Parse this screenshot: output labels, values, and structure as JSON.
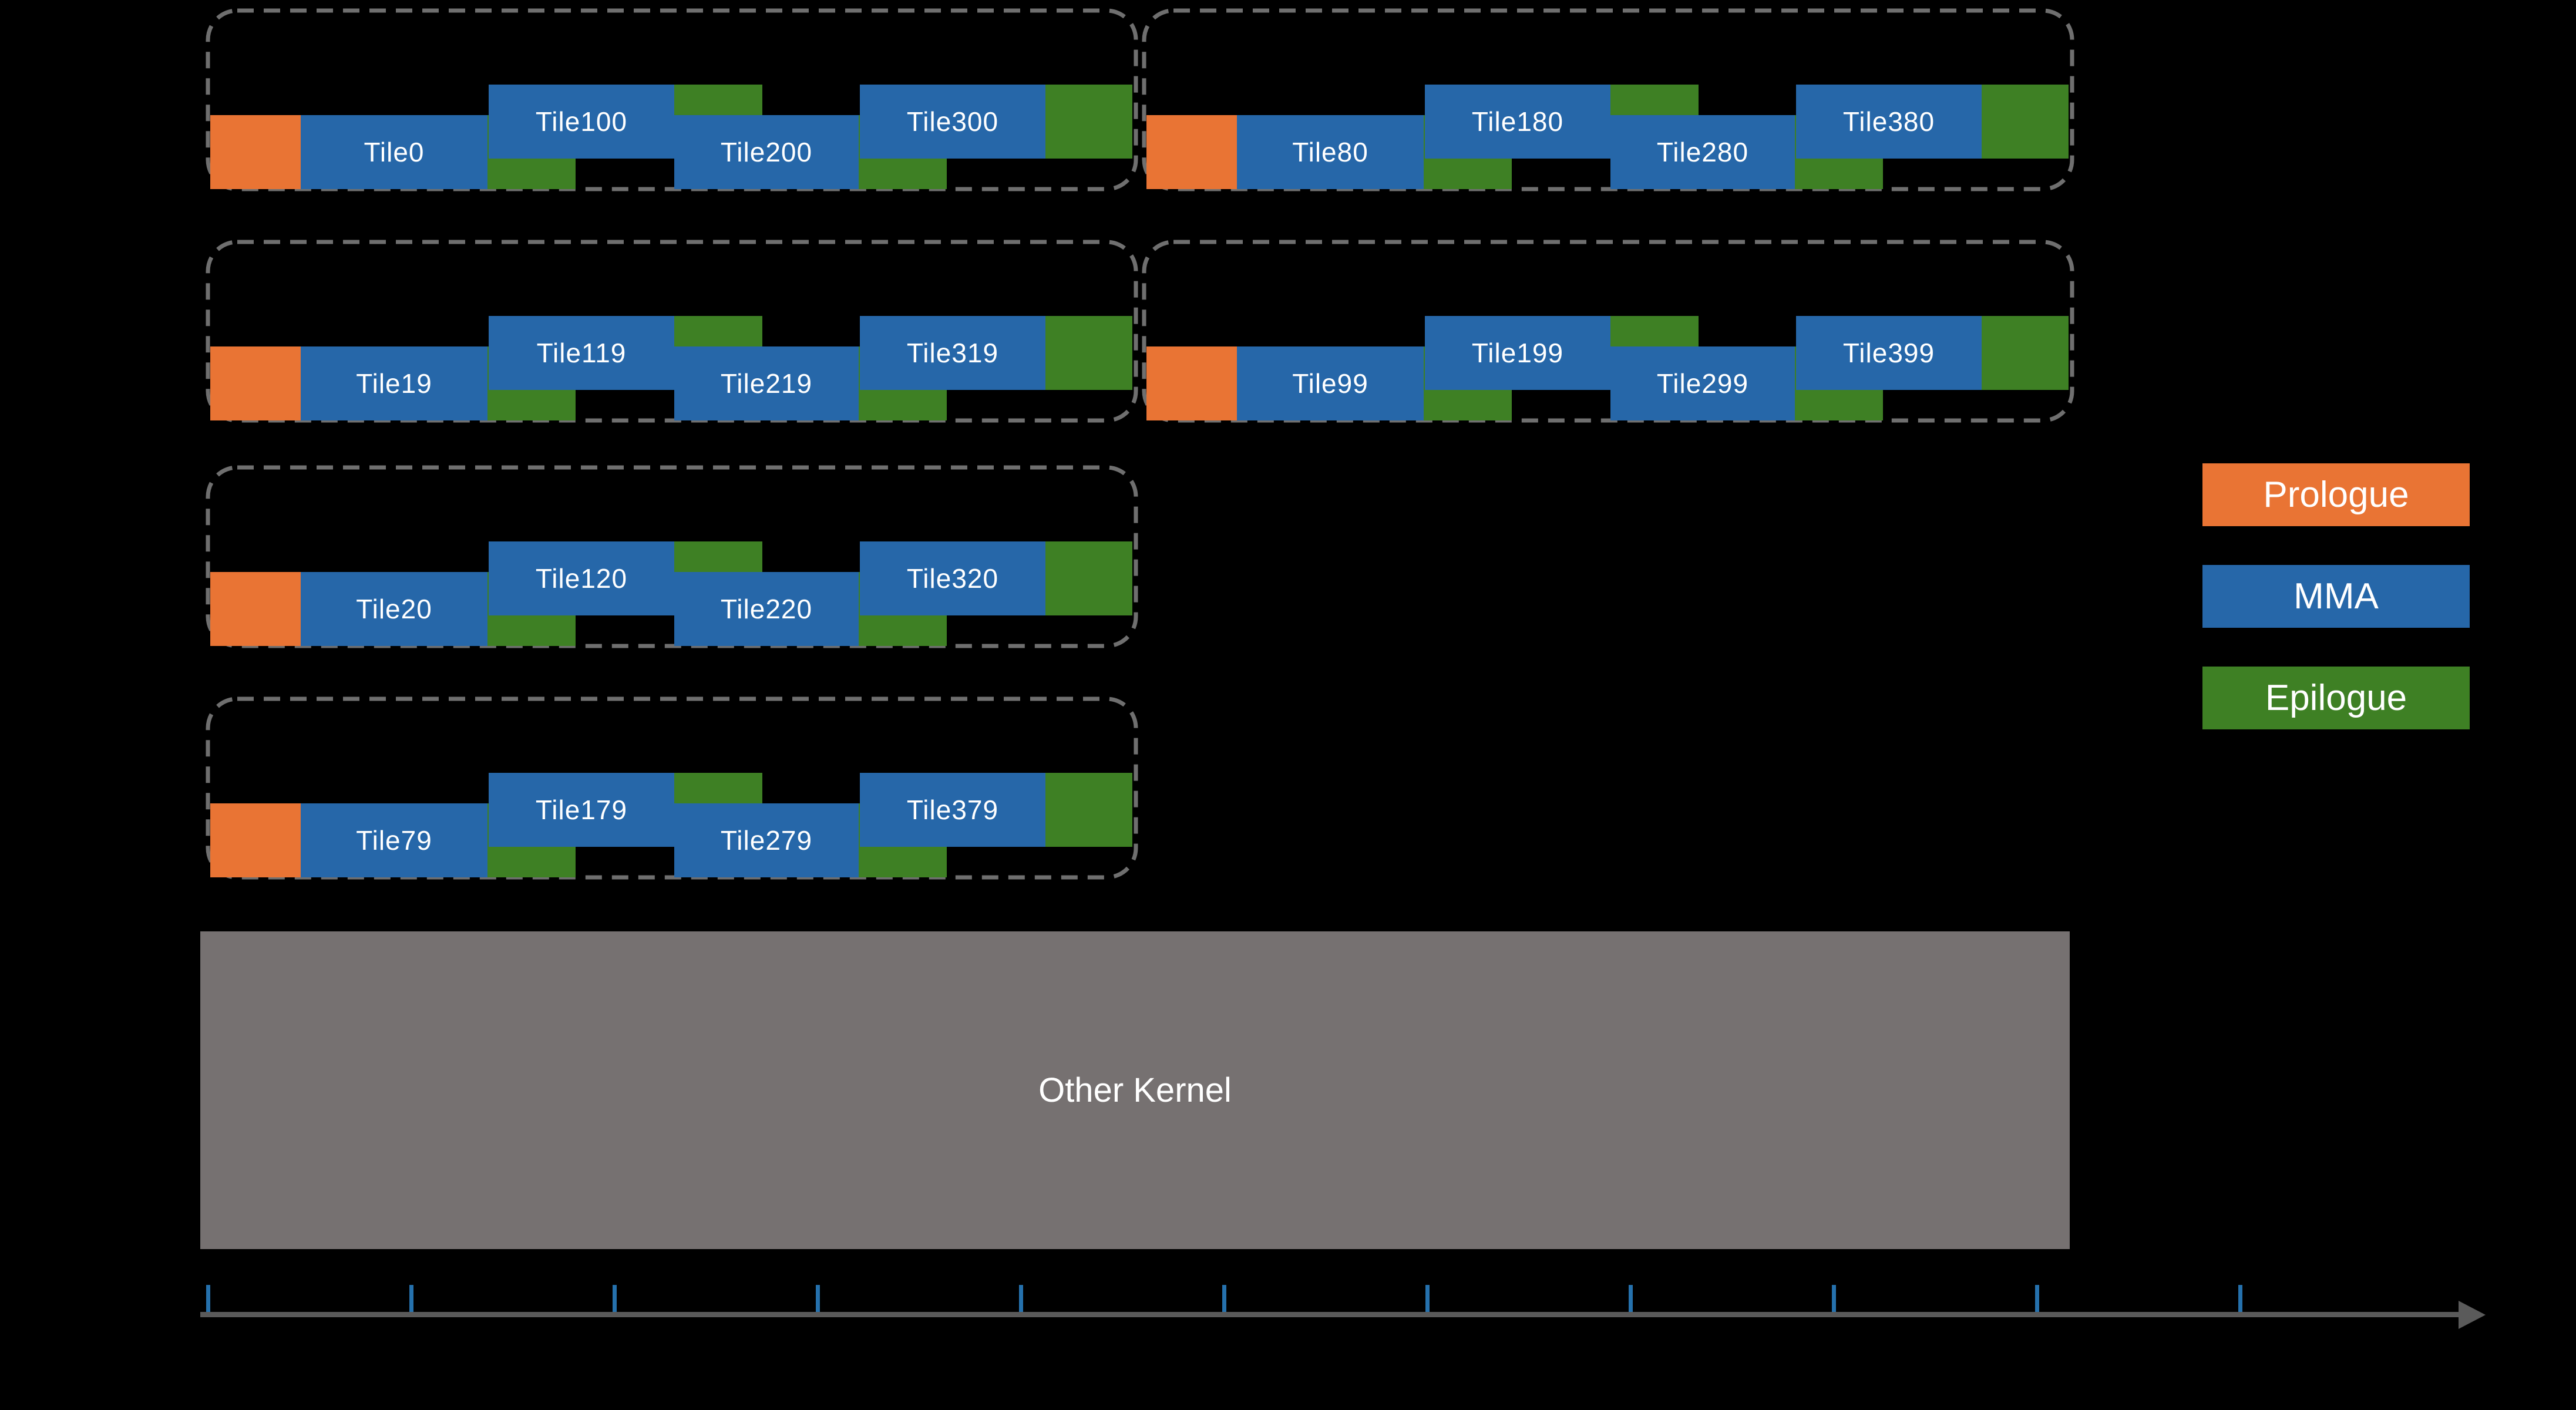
{
  "colors": {
    "background": "#000000",
    "prologue": "#E97434",
    "mma": "#2667A9",
    "epilogue": "#3E8024",
    "group_border": "#6F6F6F",
    "other_kernel": "#767171",
    "axis_line": "#5A5A5A",
    "axis_tick": "#2571AD",
    "label_text": "#FFFFFF"
  },
  "groups": [
    {
      "row": 0,
      "col": 0,
      "tiles": [
        "Tile0",
        "Tile100",
        "Tile200",
        "Tile300"
      ]
    },
    {
      "row": 0,
      "col": 1,
      "tiles": [
        "Tile80",
        "Tile180",
        "Tile280",
        "Tile380"
      ]
    },
    {
      "row": 1,
      "col": 0,
      "tiles": [
        "Tile19",
        "Tile119",
        "Tile219",
        "Tile319"
      ]
    },
    {
      "row": 1,
      "col": 1,
      "tiles": [
        "Tile99",
        "Tile199",
        "Tile299",
        "Tile399"
      ]
    },
    {
      "row": 2,
      "col": 0,
      "tiles": [
        "Tile20",
        "Tile120",
        "Tile220",
        "Tile320"
      ]
    },
    {
      "row": 3,
      "col": 0,
      "tiles": [
        "Tile79",
        "Tile179",
        "Tile279",
        "Tile379"
      ]
    }
  ],
  "legend": {
    "items": [
      {
        "label": "Prologue",
        "color_key": "prologue"
      },
      {
        "label": "MMA",
        "color_key": "mma"
      },
      {
        "label": "Epilogue",
        "color_key": "epilogue"
      }
    ]
  },
  "other_kernel": {
    "label": "Other Kernel"
  },
  "timeline": {
    "tick_count": 11
  }
}
